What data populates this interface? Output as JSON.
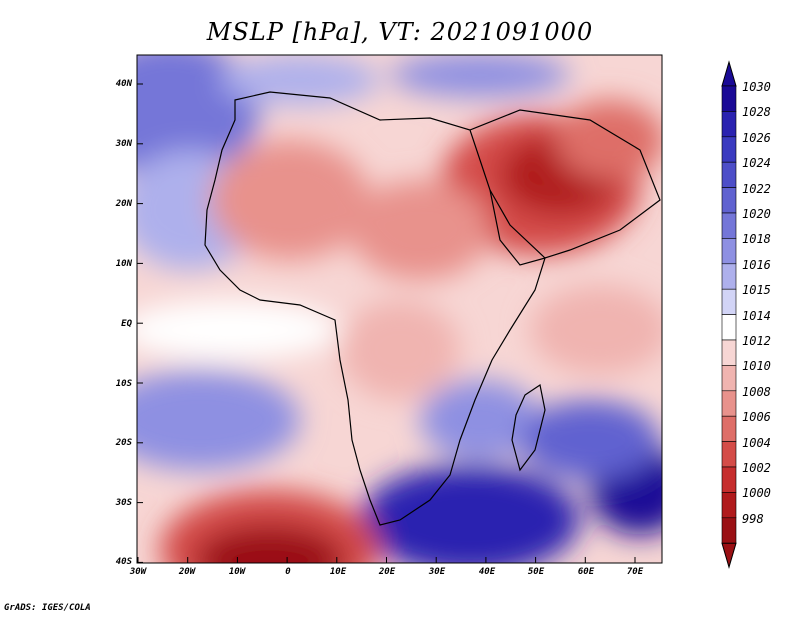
{
  "title": "MSLP [hPa], VT: 2021091000",
  "credit": "GrADS: IGES/COLA",
  "lat_labels": [
    "40N",
    "30N",
    "20N",
    "10N",
    "EQ",
    "10S",
    "20S",
    "30S",
    "40S"
  ],
  "lon_labels": [
    "30W",
    "20W",
    "10W",
    "0",
    "10E",
    "20E",
    "30E",
    "40E",
    "50E",
    "60E",
    "70E"
  ],
  "colorbar": {
    "labels": [
      "1030",
      "1028",
      "1026",
      "1024",
      "1022",
      "1020",
      "1018",
      "1016",
      "1015",
      "1014",
      "1012",
      "1010",
      "1008",
      "1006",
      "1004",
      "1002",
      "1000",
      "998"
    ],
    "colors": [
      "#1a0a96",
      "#2a22b0",
      "#3a3ac0",
      "#4d4ec8",
      "#6062d0",
      "#7476d8",
      "#8e90e2",
      "#aeb0ec",
      "#d2d4f6",
      "#ffffff",
      "#f7d6d4",
      "#f0b4b0",
      "#e8928c",
      "#de6e68",
      "#d44c48",
      "#c62e2e",
      "#b01a1c",
      "#9a1014"
    ]
  },
  "legend": {
    "blue": "#2222a8",
    "red": "#b31d22"
  }
}
